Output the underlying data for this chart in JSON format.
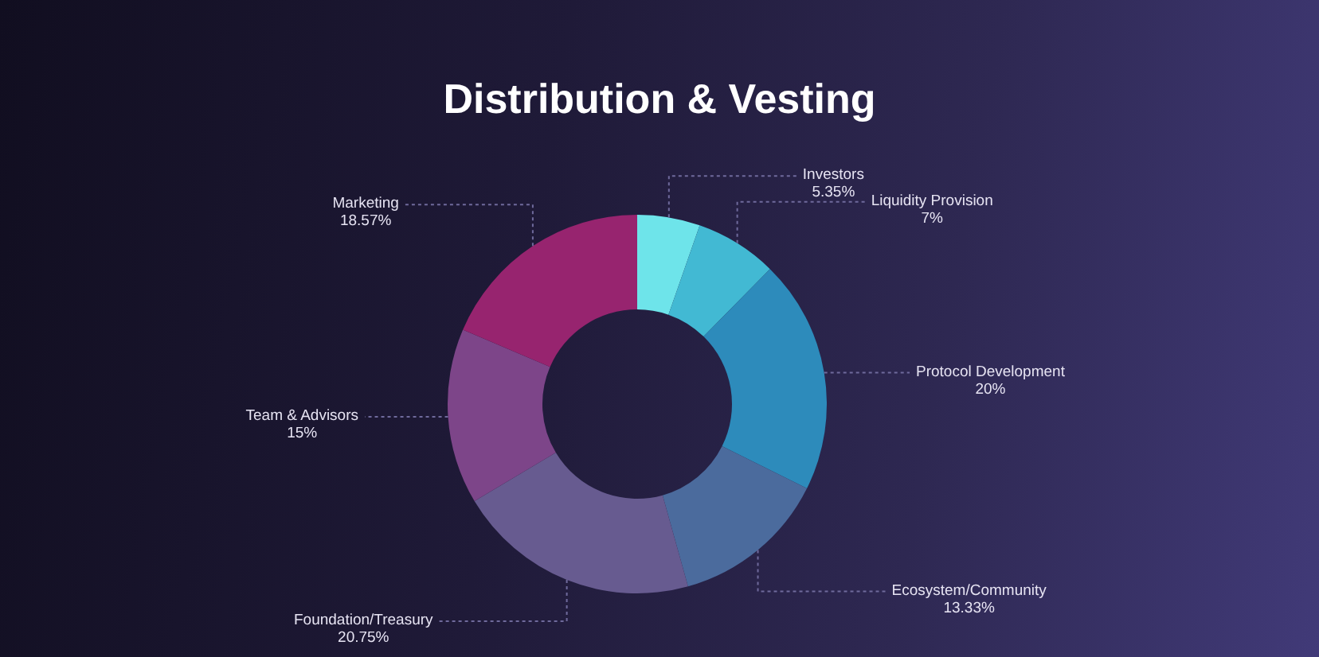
{
  "chart_data": {
    "type": "donut",
    "title": "Distribution & Vesting",
    "categories": [
      "Investors",
      "Liquidity Provision",
      "Protocol Development",
      "Ecosystem/Community",
      "Foundation/Treasury",
      "Team & Advisors",
      "Marketing"
    ],
    "values": [
      5.35,
      7,
      20,
      13.33,
      20.75,
      15,
      18.57
    ],
    "colors": [
      "#6ee4ea",
      "#42b9d3",
      "#2d8bbb",
      "#4b6b9d",
      "#675b90",
      "#7d4589",
      "#97246f"
    ],
    "value_labels": [
      "5.35%",
      "7%",
      "20%",
      "13.33%",
      "20.75%",
      "15%",
      "18.57%"
    ]
  }
}
